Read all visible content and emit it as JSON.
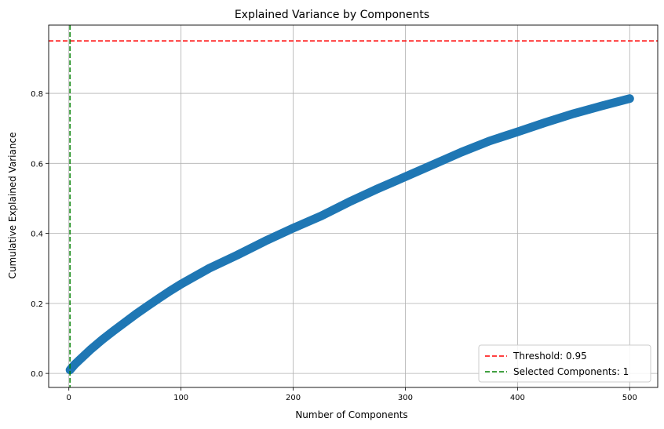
{
  "chart_data": {
    "type": "line",
    "title": "Explained Variance by Components",
    "xlabel": "Number of Components",
    "ylabel": "Cumulative Explained Variance",
    "xlim": [
      -18,
      525
    ],
    "ylim": [
      -0.04,
      0.995
    ],
    "xticks": [
      0,
      100,
      200,
      300,
      400,
      500
    ],
    "xtick_labels": [
      "0",
      "100",
      "200",
      "300",
      "400",
      "500"
    ],
    "yticks": [
      0.0,
      0.2,
      0.4,
      0.6,
      0.8
    ],
    "ytick_labels": [
      "0.0",
      "0.2",
      "0.4",
      "0.6",
      "0.8"
    ],
    "grid": true,
    "legend_position": "bottom-right",
    "series": [
      {
        "name": "",
        "color": "#1f77b4",
        "marker": "circle",
        "x": [
          1,
          5,
          10,
          20,
          30,
          40,
          50,
          60,
          70,
          80,
          90,
          100,
          125,
          150,
          175,
          200,
          225,
          250,
          275,
          300,
          325,
          350,
          375,
          400,
          425,
          450,
          475,
          500
        ],
        "y": [
          0.01,
          0.025,
          0.04,
          0.07,
          0.097,
          0.122,
          0.146,
          0.17,
          0.192,
          0.214,
          0.235,
          0.255,
          0.3,
          0.338,
          0.378,
          0.415,
          0.45,
          0.49,
          0.527,
          0.562,
          0.597,
          0.632,
          0.664,
          0.69,
          0.717,
          0.742,
          0.764,
          0.785
        ]
      }
    ],
    "reference_lines": [
      {
        "orientation": "horizontal",
        "value": 0.95,
        "color": "#ff0000",
        "style": "dashed",
        "label": "Threshold: 0.95"
      },
      {
        "orientation": "vertical",
        "value": 1,
        "color": "#008000",
        "style": "dashed",
        "label": "Selected Components: 1"
      }
    ]
  }
}
